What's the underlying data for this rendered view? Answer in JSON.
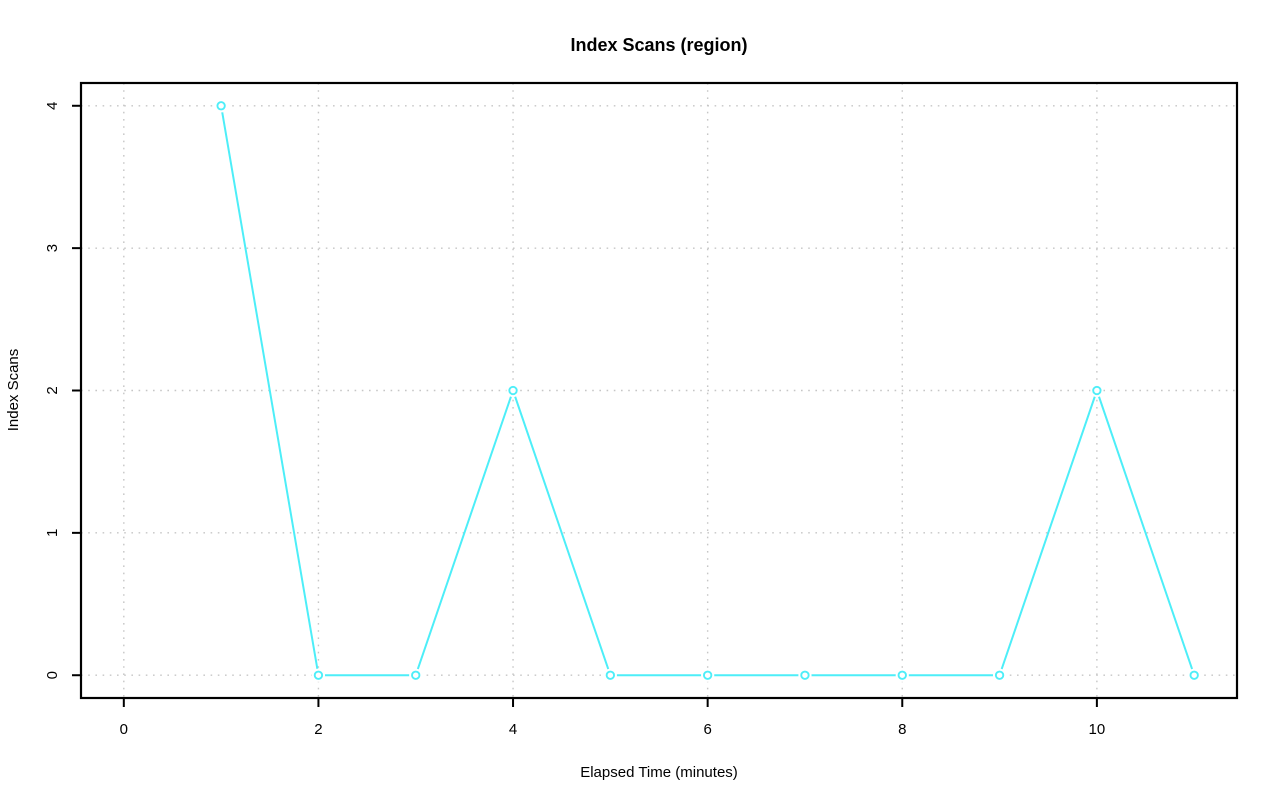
{
  "figure": {
    "background": "#ffffff"
  },
  "chart_data": {
    "type": "line",
    "title": "Index Scans (region)",
    "xlabel": "Elapsed Time (minutes)",
    "ylabel": "Index Scans",
    "x": [
      1,
      2,
      3,
      4,
      5,
      6,
      7,
      8,
      9,
      10,
      11
    ],
    "y": [
      4,
      0,
      0,
      2,
      0,
      0,
      0,
      0,
      0,
      2,
      0
    ],
    "xticks": [
      0,
      2,
      4,
      6,
      8,
      10
    ],
    "yticks": [
      0,
      1,
      2,
      3,
      4
    ],
    "xlim": [
      -0.44,
      11.44
    ],
    "ylim": [
      -0.16,
      4.16
    ],
    "grid": true,
    "grid_style": "dotted",
    "legend": "none",
    "marker": "open-circle",
    "line_type": "both-points-and-lines",
    "colors": {
      "series": "#4deef8",
      "grid": "#c6c6c6",
      "axis": "#000000",
      "text": "#000000",
      "background": "#ffffff"
    }
  }
}
